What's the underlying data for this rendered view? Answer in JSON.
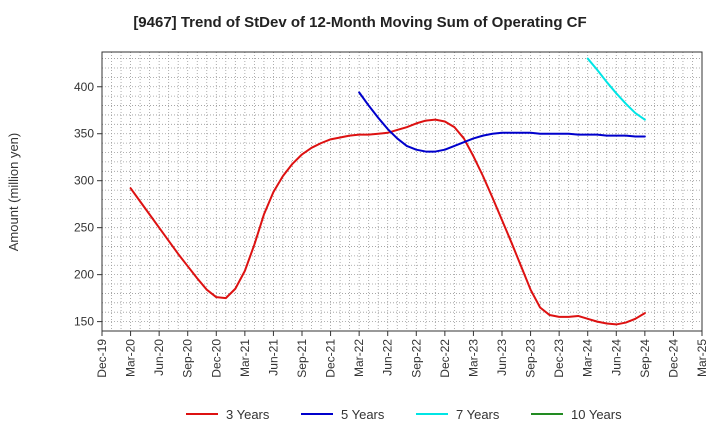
{
  "chart_data": {
    "type": "line",
    "title": "[9467]  Trend of StDev of 12-Month Moving Sum of Operating CF",
    "ylabel": "Amount (million yen)",
    "xlabel": "",
    "ylim": [
      140,
      437
    ],
    "yticks": [
      150,
      200,
      250,
      300,
      350,
      400
    ],
    "x_tick_labels": [
      "Dec-19",
      "Mar-20",
      "Jun-20",
      "Sep-20",
      "Dec-20",
      "Mar-21",
      "Jun-21",
      "Sep-21",
      "Dec-21",
      "Mar-22",
      "Jun-22",
      "Sep-22",
      "Dec-22",
      "Mar-23",
      "Jun-23",
      "Sep-23",
      "Dec-23",
      "Mar-24",
      "Jun-24",
      "Sep-24",
      "Dec-24",
      "Mar-25"
    ],
    "grid": true,
    "legend_position": "bottom",
    "series": [
      {
        "name": "3 Years",
        "color": "#dd1111",
        "points": [
          [
            "Mar-20",
            292
          ],
          [
            "Apr-20",
            278
          ],
          [
            "May-20",
            264
          ],
          [
            "Jun-20",
            250
          ],
          [
            "Jul-20",
            236
          ],
          [
            "Aug-20",
            222
          ],
          [
            "Sep-20",
            209
          ],
          [
            "Oct-20",
            196
          ],
          [
            "Nov-20",
            184
          ],
          [
            "Dec-20",
            176
          ],
          [
            "Jan-21",
            175
          ],
          [
            "Feb-21",
            185
          ],
          [
            "Mar-21",
            204
          ],
          [
            "Apr-21",
            232
          ],
          [
            "May-21",
            264
          ],
          [
            "Jun-21",
            288
          ],
          [
            "Jul-21",
            305
          ],
          [
            "Aug-21",
            318
          ],
          [
            "Sep-21",
            328
          ],
          [
            "Oct-21",
            335
          ],
          [
            "Nov-21",
            340
          ],
          [
            "Dec-21",
            344
          ],
          [
            "Jan-22",
            346
          ],
          [
            "Feb-22",
            348
          ],
          [
            "Mar-22",
            349
          ],
          [
            "Apr-22",
            349
          ],
          [
            "May-22",
            350
          ],
          [
            "Jun-22",
            351
          ],
          [
            "Jul-22",
            354
          ],
          [
            "Aug-22",
            357
          ],
          [
            "Sep-22",
            361
          ],
          [
            "Oct-22",
            364
          ],
          [
            "Nov-22",
            365
          ],
          [
            "Dec-22",
            363
          ],
          [
            "Jan-23",
            357
          ],
          [
            "Feb-23",
            345
          ],
          [
            "Mar-23",
            326
          ],
          [
            "Apr-23",
            305
          ],
          [
            "May-23",
            282
          ],
          [
            "Jun-23",
            258
          ],
          [
            "Jul-23",
            234
          ],
          [
            "Aug-23",
            209
          ],
          [
            "Sep-23",
            184
          ],
          [
            "Oct-23",
            165
          ],
          [
            "Nov-23",
            157
          ],
          [
            "Dec-23",
            155
          ],
          [
            "Jan-24",
            155
          ],
          [
            "Feb-24",
            156
          ],
          [
            "Mar-24",
            153
          ],
          [
            "Apr-24",
            150
          ],
          [
            "May-24",
            148
          ],
          [
            "Jun-24",
            147
          ],
          [
            "Jul-24",
            149
          ],
          [
            "Aug-24",
            153
          ],
          [
            "Sep-24",
            159
          ]
        ]
      },
      {
        "name": "5 Years",
        "color": "#0000cc",
        "points": [
          [
            "Mar-22",
            394
          ],
          [
            "Apr-22",
            380
          ],
          [
            "May-22",
            367
          ],
          [
            "Jun-22",
            355
          ],
          [
            "Jul-22",
            345
          ],
          [
            "Aug-22",
            337
          ],
          [
            "Sep-22",
            333
          ],
          [
            "Oct-22",
            331
          ],
          [
            "Nov-22",
            331
          ],
          [
            "Dec-22",
            333
          ],
          [
            "Jan-23",
            337
          ],
          [
            "Feb-23",
            341
          ],
          [
            "Mar-23",
            345
          ],
          [
            "Apr-23",
            348
          ],
          [
            "May-23",
            350
          ],
          [
            "Jun-23",
            351
          ],
          [
            "Jul-23",
            351
          ],
          [
            "Aug-23",
            351
          ],
          [
            "Sep-23",
            351
          ],
          [
            "Oct-23",
            350
          ],
          [
            "Nov-23",
            350
          ],
          [
            "Dec-23",
            350
          ],
          [
            "Jan-24",
            350
          ],
          [
            "Feb-24",
            349
          ],
          [
            "Mar-24",
            349
          ],
          [
            "Apr-24",
            349
          ],
          [
            "May-24",
            348
          ],
          [
            "Jun-24",
            348
          ],
          [
            "Jul-24",
            348
          ],
          [
            "Aug-24",
            347
          ],
          [
            "Sep-24",
            347
          ]
        ]
      },
      {
        "name": "7 Years",
        "color": "#00e5e5",
        "points": [
          [
            "Mar-24",
            430
          ],
          [
            "Apr-24",
            418
          ],
          [
            "May-24",
            405
          ],
          [
            "Jun-24",
            393
          ],
          [
            "Jul-24",
            382
          ],
          [
            "Aug-24",
            372
          ],
          [
            "Sep-24",
            365
          ]
        ]
      },
      {
        "name": "10 Years",
        "color": "#228b22",
        "points": []
      }
    ]
  }
}
